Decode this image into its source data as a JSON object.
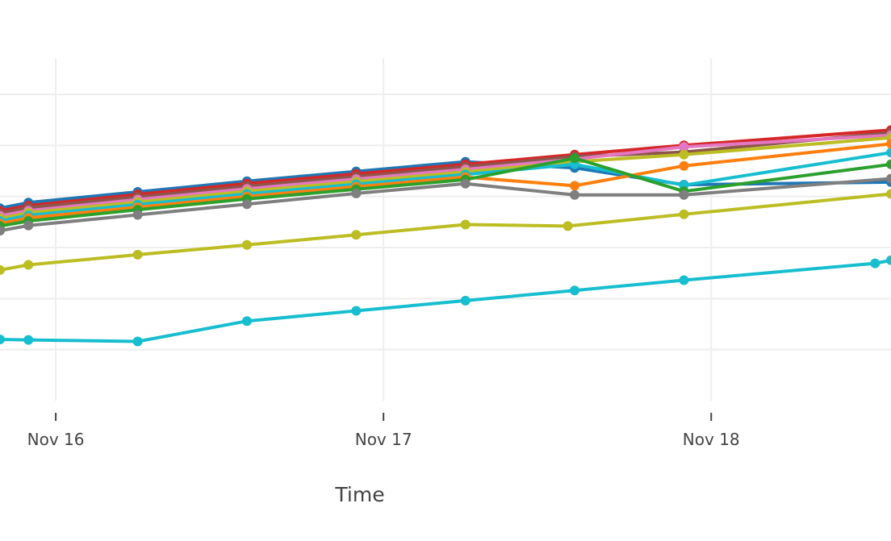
{
  "chart_data": {
    "type": "line",
    "xlabel": "Time",
    "ylabel": "",
    "x_ticks": [
      {
        "label": "Nov 16",
        "x": "2023-11-16T00:00"
      },
      {
        "label": "Nov 17",
        "x": "2023-11-17T00:00"
      },
      {
        "label": "Nov 18",
        "x": "2023-11-18T00:00"
      }
    ],
    "xlim": [
      "2023-11-15T19:55",
      "2023-11-18T13:10"
    ],
    "ylim": [
      0,
      6.9
    ],
    "y_gridlines": [
      1,
      2,
      3,
      4,
      5,
      6
    ],
    "y_tick_labels_visible": false,
    "grid": true,
    "legend": "none",
    "series": [
      {
        "color": "#1f77b4",
        "x": [
          "2023-11-15T19:55",
          "2023-11-15T22:00",
          "2023-11-16T06:00",
          "2023-11-16T14:00",
          "2023-11-16T22:00",
          "2023-11-17T06:00",
          "2023-11-17T14:00",
          "2023-11-17T22:00",
          "2023-11-18T13:10"
        ],
        "y": [
          3.77,
          3.88,
          4.09,
          4.3,
          4.49,
          4.68,
          4.56,
          4.23,
          4.28
        ]
      },
      {
        "color": "#d62728",
        "x": [
          "2023-11-15T19:55",
          "2023-11-15T22:00",
          "2023-11-16T06:00",
          "2023-11-16T14:00",
          "2023-11-16T22:00",
          "2023-11-17T06:00",
          "2023-11-17T14:00",
          "2023-11-17T22:00",
          "2023-11-18T13:10"
        ],
        "y": [
          3.72,
          3.82,
          4.04,
          4.25,
          4.44,
          4.63,
          4.82,
          5.0,
          5.3
        ]
      },
      {
        "color": "#8c564b",
        "x": [
          "2023-11-15T19:55",
          "2023-11-15T22:00",
          "2023-11-16T06:00",
          "2023-11-16T14:00",
          "2023-11-16T22:00",
          "2023-11-17T06:00",
          "2023-11-17T14:00",
          "2023-11-17T22:00",
          "2023-11-18T13:10"
        ],
        "y": [
          3.67,
          3.78,
          3.99,
          4.2,
          4.39,
          4.58,
          4.78,
          4.87,
          5.25
        ]
      },
      {
        "color": "#e377c2",
        "x": [
          "2023-11-15T19:55",
          "2023-11-15T22:00",
          "2023-11-16T06:00",
          "2023-11-16T14:00",
          "2023-11-16T22:00",
          "2023-11-17T06:00",
          "2023-11-17T14:00",
          "2023-11-17T22:00",
          "2023-11-18T13:10"
        ],
        "y": [
          3.62,
          3.72,
          3.94,
          4.15,
          4.34,
          4.53,
          4.73,
          4.97,
          5.2
        ]
      },
      {
        "color": "#bcbd22",
        "x": [
          "2023-11-15T19:55",
          "2023-11-15T22:00",
          "2023-11-16T06:00",
          "2023-11-16T14:00",
          "2023-11-16T22:00",
          "2023-11-17T06:00",
          "2023-11-17T14:00",
          "2023-11-17T22:00",
          "2023-11-18T13:10"
        ],
        "y": [
          3.57,
          3.68,
          3.89,
          4.1,
          4.29,
          4.48,
          4.68,
          4.82,
          5.15
        ]
      },
      {
        "color": "#17becf",
        "x": [
          "2023-11-15T19:55",
          "2023-11-15T22:00",
          "2023-11-16T06:00",
          "2023-11-16T14:00",
          "2023-11-16T22:00",
          "2023-11-17T06:00",
          "2023-11-17T14:00",
          "2023-11-17T22:00",
          "2023-11-18T13:10"
        ],
        "y": [
          3.52,
          3.63,
          3.84,
          4.05,
          4.24,
          4.43,
          4.63,
          4.22,
          4.86
        ]
      },
      {
        "color": "#ff7f0e",
        "x": [
          "2023-11-15T19:55",
          "2023-11-15T22:00",
          "2023-11-16T06:00",
          "2023-11-16T14:00",
          "2023-11-16T22:00",
          "2023-11-17T06:00",
          "2023-11-17T14:00",
          "2023-11-17T22:00",
          "2023-11-18T13:10"
        ],
        "y": [
          3.47,
          3.58,
          3.79,
          4.0,
          4.19,
          4.38,
          4.21,
          4.6,
          5.03
        ]
      },
      {
        "color": "#2ca02c",
        "x": [
          "2023-11-15T19:55",
          "2023-11-15T22:00",
          "2023-11-16T06:00",
          "2023-11-16T14:00",
          "2023-11-16T22:00",
          "2023-11-17T06:00",
          "2023-11-17T14:00",
          "2023-11-17T22:00",
          "2023-11-18T13:10"
        ],
        "y": [
          3.42,
          3.52,
          3.74,
          3.95,
          4.14,
          4.33,
          4.75,
          4.1,
          4.63
        ]
      },
      {
        "color": "#7f7f7f",
        "x": [
          "2023-11-15T19:55",
          "2023-11-15T22:00",
          "2023-11-16T06:00",
          "2023-11-16T14:00",
          "2023-11-16T22:00",
          "2023-11-17T06:00",
          "2023-11-17T14:00",
          "2023-11-17T22:00",
          "2023-11-18T13:10"
        ],
        "y": [
          3.33,
          3.43,
          3.64,
          3.85,
          4.06,
          4.25,
          4.03,
          4.03,
          4.35
        ]
      },
      {
        "color": "#bcbd22",
        "x": [
          "2023-11-15T19:55",
          "2023-11-15T22:00",
          "2023-11-16T06:00",
          "2023-11-16T14:00",
          "2023-11-16T22:00",
          "2023-11-17T06:00",
          "2023-11-17T13:30",
          "2023-11-17T22:00",
          "2023-11-18T13:10"
        ],
        "y": [
          2.56,
          2.66,
          2.86,
          3.05,
          3.25,
          3.45,
          3.42,
          3.65,
          4.05
        ]
      },
      {
        "color": "#17becf",
        "x": [
          "2023-11-15T19:55",
          "2023-11-15T22:00",
          "2023-11-16T06:00",
          "2023-11-16T14:00",
          "2023-11-16T22:00",
          "2023-11-17T06:00",
          "2023-11-17T14:00",
          "2023-11-17T22:00",
          "2023-11-18T12:00",
          "2023-11-18T13:10"
        ],
        "y": [
          1.2,
          1.19,
          1.16,
          1.56,
          1.76,
          1.96,
          2.16,
          2.36,
          2.69,
          2.75
        ]
      }
    ]
  }
}
